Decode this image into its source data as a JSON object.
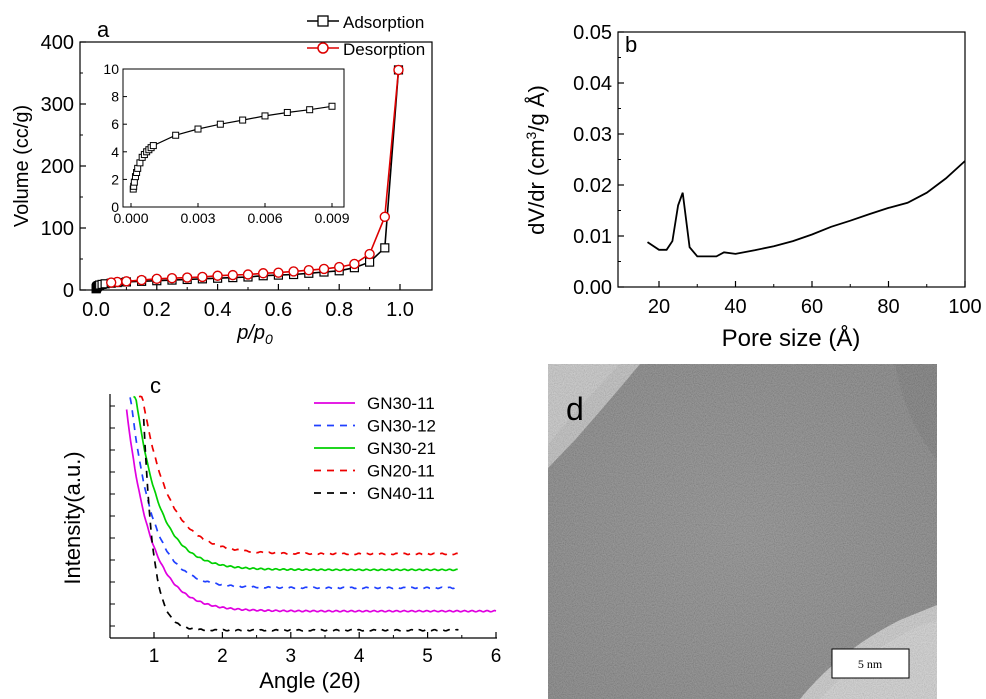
{
  "chart_data": [
    {
      "type": "line",
      "panel_label": "a",
      "ylabel": "Volume (cc/g)",
      "xlabel_p": "p/p",
      "xlabel_sub": "0",
      "xlim": [
        0,
        1.0
      ],
      "ylim": [
        0,
        400
      ],
      "x_ticks": [
        "0.0",
        "0.2",
        "0.4",
        "0.6",
        "0.8",
        "1.0"
      ],
      "y_ticks": [
        "0",
        "100",
        "200",
        "300",
        "400"
      ],
      "legend": [
        "Adsorption",
        "Desorption"
      ],
      "colors": {
        "Adsorption": "#000000",
        "Desorption": "#dd0000"
      },
      "series": [
        {
          "name": "Adsorption",
          "x": [
            0.0005,
            0.001,
            0.002,
            0.003,
            0.005,
            0.008,
            0.012,
            0.02,
            0.03,
            0.05,
            0.07,
            0.1,
            0.15,
            0.2,
            0.25,
            0.3,
            0.35,
            0.4,
            0.45,
            0.5,
            0.55,
            0.6,
            0.65,
            0.7,
            0.75,
            0.8,
            0.85,
            0.9,
            0.95,
            0.995
          ],
          "y": [
            2,
            3,
            4,
            5,
            6,
            7,
            8,
            9,
            10,
            11,
            12,
            13,
            14,
            15,
            16,
            17,
            18,
            19,
            20,
            21,
            23,
            24,
            25,
            27,
            29,
            31,
            36,
            45,
            68,
            355
          ]
        },
        {
          "name": "Desorption",
          "x": [
            0.995,
            0.95,
            0.9,
            0.85,
            0.8,
            0.75,
            0.7,
            0.65,
            0.6,
            0.55,
            0.5,
            0.45,
            0.4,
            0.35,
            0.3,
            0.25,
            0.2,
            0.15,
            0.1,
            0.07,
            0.05
          ],
          "y": [
            355,
            118,
            58,
            42,
            37,
            34,
            32,
            30,
            28,
            27,
            25,
            24,
            23,
            21,
            20,
            19,
            18,
            16,
            14,
            13,
            12
          ]
        }
      ],
      "inset": {
        "xlim": [
          0,
          0.01
        ],
        "ylim": [
          0,
          10
        ],
        "x_ticks": [
          "0.000",
          "0.003",
          "0.006",
          "0.009"
        ],
        "y_ticks": [
          "0",
          "2",
          "4",
          "6",
          "8",
          "10"
        ],
        "x": [
          0.0001,
          0.00012,
          0.00015,
          0.0002,
          0.00025,
          0.0003,
          0.0004,
          0.0005,
          0.0006,
          0.0007,
          0.0008,
          0.0009,
          0.001,
          0.002,
          0.003,
          0.004,
          0.005,
          0.006,
          0.007,
          0.008,
          0.009
        ],
        "y": [
          1.3,
          1.5,
          1.8,
          2.2,
          2.5,
          2.8,
          3.2,
          3.6,
          3.8,
          4.0,
          4.15,
          4.3,
          4.45,
          5.2,
          5.65,
          6.0,
          6.3,
          6.6,
          6.85,
          7.05,
          7.3
        ]
      }
    },
    {
      "type": "line",
      "panel_label": "b",
      "xlabel": "Pore size (Å)",
      "ylabel": "dV/dr (cm³/g Å)",
      "xlim": [
        10,
        100
      ],
      "ylim": [
        0,
        0.05
      ],
      "x_ticks": [
        "20",
        "40",
        "60",
        "80",
        "100"
      ],
      "y_ticks": [
        "0.00",
        "0.01",
        "0.02",
        "0.03",
        "0.04",
        "0.05"
      ],
      "series": [
        {
          "x": [
            17,
            20,
            22,
            23.5,
            25,
            26.2,
            28,
            30,
            35,
            37,
            40,
            45,
            50,
            55,
            60,
            65,
            70,
            75,
            80,
            85,
            90,
            95,
            100
          ],
          "y": [
            0.0088,
            0.0073,
            0.0073,
            0.009,
            0.016,
            0.0185,
            0.0078,
            0.006,
            0.006,
            0.0068,
            0.0065,
            0.0072,
            0.008,
            0.009,
            0.0103,
            0.0118,
            0.013,
            0.0143,
            0.0155,
            0.0165,
            0.0185,
            0.0213,
            0.0247
          ]
        }
      ]
    },
    {
      "type": "line",
      "panel_label": "c",
      "xlabel": "Angle (2θ)",
      "ylabel": "Intensity(a.u.)",
      "xlim": [
        0.3,
        6
      ],
      "x_ticks": [
        "1",
        "2",
        "3",
        "4",
        "5",
        "6"
      ],
      "legend": [
        "GN30-11",
        "GN30-12",
        "GN30-21",
        "GN20-11",
        "GN40-11"
      ],
      "series": [
        {
          "name": "GN30-11",
          "color": "#e000e0",
          "dash": false,
          "x0": 0.6,
          "x1": 6,
          "base": 0.07,
          "amp": 0.95,
          "decay": 1.3
        },
        {
          "name": "GN30-12",
          "color": "#2040ff",
          "dash": true,
          "x0": 0.65,
          "x1": 5.45,
          "base": 0.18,
          "amp": 0.92,
          "decay": 1.4
        },
        {
          "name": "GN30-21",
          "color": "#00d000",
          "dash": false,
          "x0": 0.7,
          "x1": 5.45,
          "base": 0.265,
          "amp": 0.9,
          "decay": 1.3
        },
        {
          "name": "GN20-11",
          "color": "#ee0000",
          "dash": true,
          "x0": 0.78,
          "x1": 5.45,
          "base": 0.34,
          "amp": 0.85,
          "decay": 1.2
        },
        {
          "name": "GN40-11",
          "color": "#000000",
          "dash": true,
          "x0": 0.85,
          "x1": 5.45,
          "base": -0.02,
          "amp": 1.0,
          "decay": 3.2
        }
      ]
    }
  ],
  "tem_image": {
    "panel_label": "d",
    "scale_bar": "5 nm"
  }
}
